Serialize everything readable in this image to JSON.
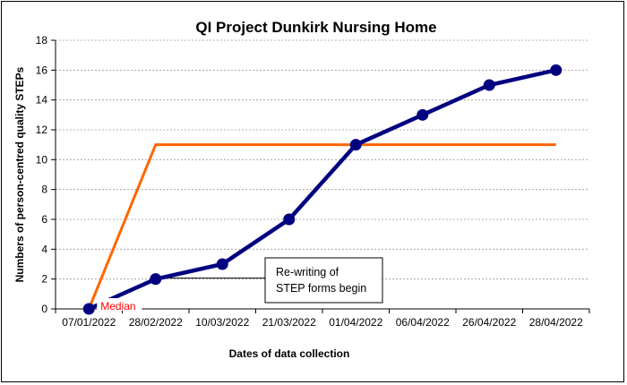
{
  "chart_data": {
    "type": "line",
    "title": "QI Project Dunkirk Nursing Home",
    "xlabel": "Dates of data collection",
    "ylabel": "Numbers of person-centred quality STEPs",
    "categories": [
      "07/01/2022",
      "28/02/2022",
      "10/03/2022",
      "21/03/2022",
      "01/04/2022",
      "06/04/2022",
      "26/04/2022",
      "28/04/2022"
    ],
    "ylim": [
      0,
      18
    ],
    "yticks": [
      0,
      2,
      4,
      6,
      8,
      10,
      12,
      14,
      16,
      18
    ],
    "grid": true,
    "series": [
      {
        "values": [
          0,
          2,
          3,
          6,
          11,
          13,
          15,
          16
        ],
        "color": "#000080",
        "markers": true
      },
      {
        "name": "Median",
        "values": [
          0,
          11,
          11,
          11,
          11,
          11,
          11,
          11
        ],
        "color": "#ff6600",
        "markers": false
      }
    ],
    "annotations": [
      {
        "text_lines": [
          "Re-writing of",
          "STEP forms begin"
        ],
        "category": "28/02/2022",
        "value": 2
      }
    ],
    "median_label_color": "#ff0000"
  }
}
